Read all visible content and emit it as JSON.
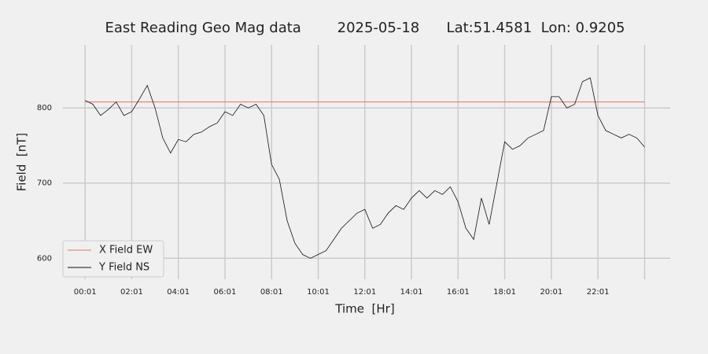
{
  "chart_data": {
    "type": "line",
    "title": "East Reading Geo Mag data        2025-05-18      Lat:51.4581  Lon: 0.9205",
    "x_label": "Time  [Hr]",
    "y_label": "Field  [nT]",
    "x": [
      1,
      21,
      41,
      61,
      81,
      101,
      121,
      141,
      161,
      181,
      201,
      221,
      241,
      261,
      281,
      301,
      321,
      341,
      361,
      381,
      401,
      421,
      441,
      461,
      481,
      501,
      521,
      541,
      561,
      581,
      601,
      621,
      641,
      661,
      681,
      701,
      721,
      741,
      761,
      781,
      801,
      821,
      841,
      861,
      881,
      901,
      921,
      941,
      961,
      981,
      1001,
      1021,
      1041,
      1061,
      1081,
      1101,
      1121,
      1141,
      1161,
      1181,
      1201,
      1221,
      1241,
      1261,
      1281,
      1301,
      1321,
      1341,
      1361,
      1381,
      1401,
      1421,
      1441
    ],
    "series": [
      {
        "name": "X Field EW",
        "color": "#e8735f",
        "values": [
          808,
          808,
          808,
          808,
          808,
          808,
          808,
          808,
          808,
          808,
          808,
          808,
          808,
          808,
          808,
          808,
          808,
          808,
          808,
          808,
          808,
          808,
          808,
          808,
          808,
          808,
          808,
          808,
          808,
          808,
          808,
          808,
          808,
          808,
          808,
          808,
          808,
          808,
          808,
          808,
          808,
          808,
          808,
          808,
          808,
          808,
          808,
          808,
          808,
          808,
          808,
          808,
          808,
          808,
          808,
          808,
          808,
          808,
          808,
          808,
          808,
          808,
          808,
          808,
          808,
          808,
          808,
          808,
          808,
          808,
          808,
          808,
          808
        ]
      },
      {
        "name": "Y Field NS",
        "color": "#111111",
        "values": [
          810,
          805,
          790,
          798,
          808,
          790,
          795,
          812,
          830,
          800,
          760,
          740,
          758,
          755,
          765,
          768,
          775,
          780,
          795,
          790,
          805,
          800,
          805,
          790,
          725,
          705,
          650,
          620,
          605,
          600,
          605,
          610,
          625,
          640,
          650,
          660,
          665,
          640,
          645,
          660,
          670,
          665,
          680,
          690,
          680,
          690,
          685,
          695,
          675,
          640,
          625,
          680,
          645,
          700,
          755,
          745,
          750,
          760,
          765,
          770,
          815,
          815,
          800,
          805,
          835,
          840,
          790,
          770,
          765,
          760,
          765,
          760,
          748
        ]
      }
    ],
    "xlim": [
      -56,
      1507
    ],
    "xticks": [
      {
        "value": 1,
        "label": "00:01"
      },
      {
        "value": 121,
        "label": "02:01"
      },
      {
        "value": 241,
        "label": "04:01"
      },
      {
        "value": 361,
        "label": "06:01"
      },
      {
        "value": 481,
        "label": "08:01"
      },
      {
        "value": 601,
        "label": "10:01"
      },
      {
        "value": 721,
        "label": "12:01"
      },
      {
        "value": 841,
        "label": "14:01"
      },
      {
        "value": 961,
        "label": "16:01"
      },
      {
        "value": 1081,
        "label": "18:01"
      },
      {
        "value": 1201,
        "label": "20:01"
      },
      {
        "value": 1321,
        "label": "22:01"
      },
      {
        "value": 1441,
        "label": null
      }
    ],
    "ylim": [
      572,
      884
    ],
    "yticks": [
      600,
      700,
      800
    ],
    "grid": true,
    "legend": "lower left"
  }
}
